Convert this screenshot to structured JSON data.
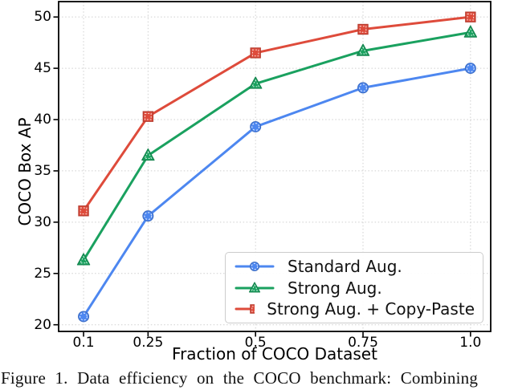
{
  "figure": {
    "caption": "Figure 1. Data efficiency on the COCO benchmark: Combining"
  },
  "chart_data": {
    "type": "line",
    "title": "",
    "xlabel": "Fraction of COCO Dataset",
    "ylabel": "COCO Box AP",
    "x": [
      0.1,
      0.25,
      0.5,
      0.75,
      1.0
    ],
    "x_tick_labels": [
      "0.1",
      "0.25",
      "0.5",
      "0.75",
      "1.0"
    ],
    "y_ticks": [
      20,
      25,
      30,
      35,
      40,
      45,
      50
    ],
    "xlim": [
      0.042,
      1.047
    ],
    "ylim": [
      19.35,
      51.5
    ],
    "grid": true,
    "grid_style": "dotted",
    "legend_position": "lower right",
    "series": [
      {
        "name": "Standard Aug.",
        "marker": "circle",
        "color": "#4d87f0",
        "values": [
          20.8,
          30.6,
          39.3,
          43.1,
          45.0
        ]
      },
      {
        "name": "Strong Aug.",
        "marker": "triangle",
        "color": "#1aa15f",
        "values": [
          26.3,
          36.5,
          43.5,
          46.7,
          48.5
        ]
      },
      {
        "name": "Strong Aug. + Copy-Paste",
        "marker": "square",
        "color": "#de4b3b",
        "values": [
          31.1,
          40.3,
          46.5,
          48.8,
          50.0
        ]
      }
    ],
    "colors": {
      "grid": "#cfcfcf",
      "spine": "#000000",
      "legend_border": "#cccccc"
    }
  }
}
